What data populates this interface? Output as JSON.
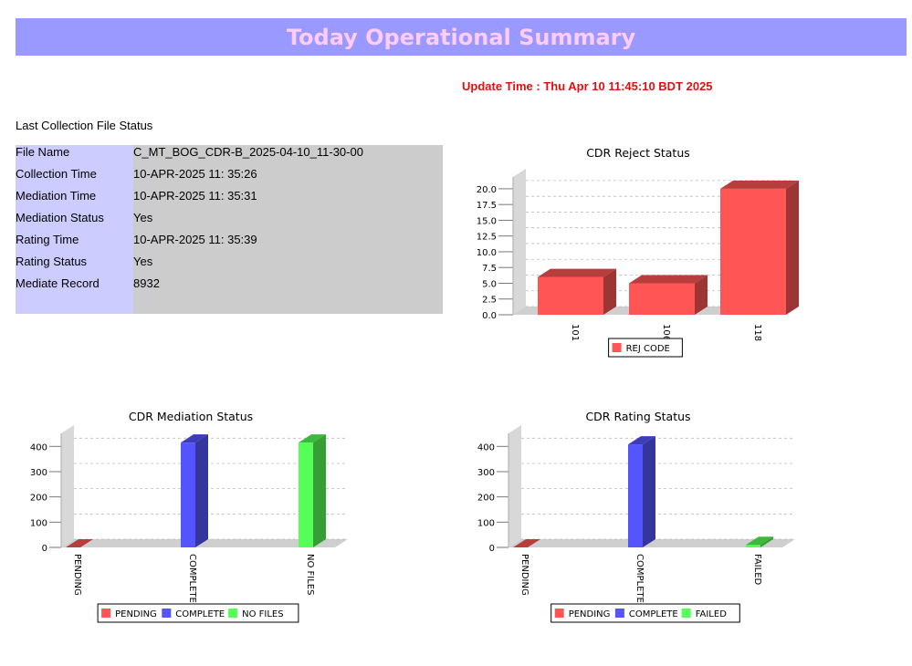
{
  "header": {
    "title": "Today Operational Summary"
  },
  "update_time": "Update Time : Thu Apr 10 11:45:10 BDT 2025",
  "last_collection": {
    "title": "Last Collection File Status",
    "rows": [
      {
        "label": "File Name",
        "value": "C_MT_BOG_CDR-B_2025-04-10_11-30-00"
      },
      {
        "label": "Collection Time",
        "value": "10-APR-2025 11: 35:26"
      },
      {
        "label": "Mediation Time",
        "value": "10-APR-2025 11: 35:31"
      },
      {
        "label": "Mediation Status",
        "value": "Yes"
      },
      {
        "label": "Rating Time",
        "value": "10-APR-2025 11: 35:39"
      },
      {
        "label": "Rating Status",
        "value": "Yes"
      },
      {
        "label": "Mediate Record",
        "value": "8932"
      }
    ]
  },
  "chart_data": [
    {
      "type": "bar",
      "title": "CDR Reject Status",
      "categories": [
        "101",
        "106",
        "118"
      ],
      "series": [
        {
          "name": "REJ CODE",
          "color": "#ff5555",
          "values": [
            6,
            5,
            20
          ]
        }
      ],
      "ylim": [
        0,
        21
      ],
      "yticks": [
        "0.0",
        "2.5",
        "5.0",
        "7.5",
        "10.0",
        "12.5",
        "15.0",
        "17.5",
        "20.0"
      ],
      "legend": "bottom",
      "grid": true
    },
    {
      "type": "bar",
      "title": "CDR Mediation Status",
      "categories": [
        "PENDING",
        "COMPLETE",
        "NO FILES"
      ],
      "series": [
        {
          "name": "PENDING",
          "color": "#ff5555",
          "values": [
            0,
            null,
            null
          ]
        },
        {
          "name": "COMPLETE",
          "color": "#5555ff",
          "values": [
            null,
            415,
            null
          ]
        },
        {
          "name": "NO FILES",
          "color": "#55ff55",
          "values": [
            null,
            null,
            415
          ]
        }
      ],
      "ylim": [
        0,
        430
      ],
      "yticks": [
        "0",
        "100",
        "200",
        "300",
        "400"
      ],
      "legend": "bottom",
      "grid": true
    },
    {
      "type": "bar",
      "title": "CDR Rating Status",
      "categories": [
        "PENDING",
        "COMPLETE",
        "FAILED"
      ],
      "series": [
        {
          "name": "PENDING",
          "color": "#ff5555",
          "values": [
            0,
            null,
            null
          ]
        },
        {
          "name": "COMPLETE",
          "color": "#5555ff",
          "values": [
            null,
            408,
            null
          ]
        },
        {
          "name": "FAILED",
          "color": "#55ff55",
          "values": [
            null,
            null,
            10
          ]
        }
      ],
      "ylim": [
        0,
        430
      ],
      "yticks": [
        "0",
        "100",
        "200",
        "300",
        "400"
      ],
      "legend": "bottom",
      "grid": true
    }
  ]
}
